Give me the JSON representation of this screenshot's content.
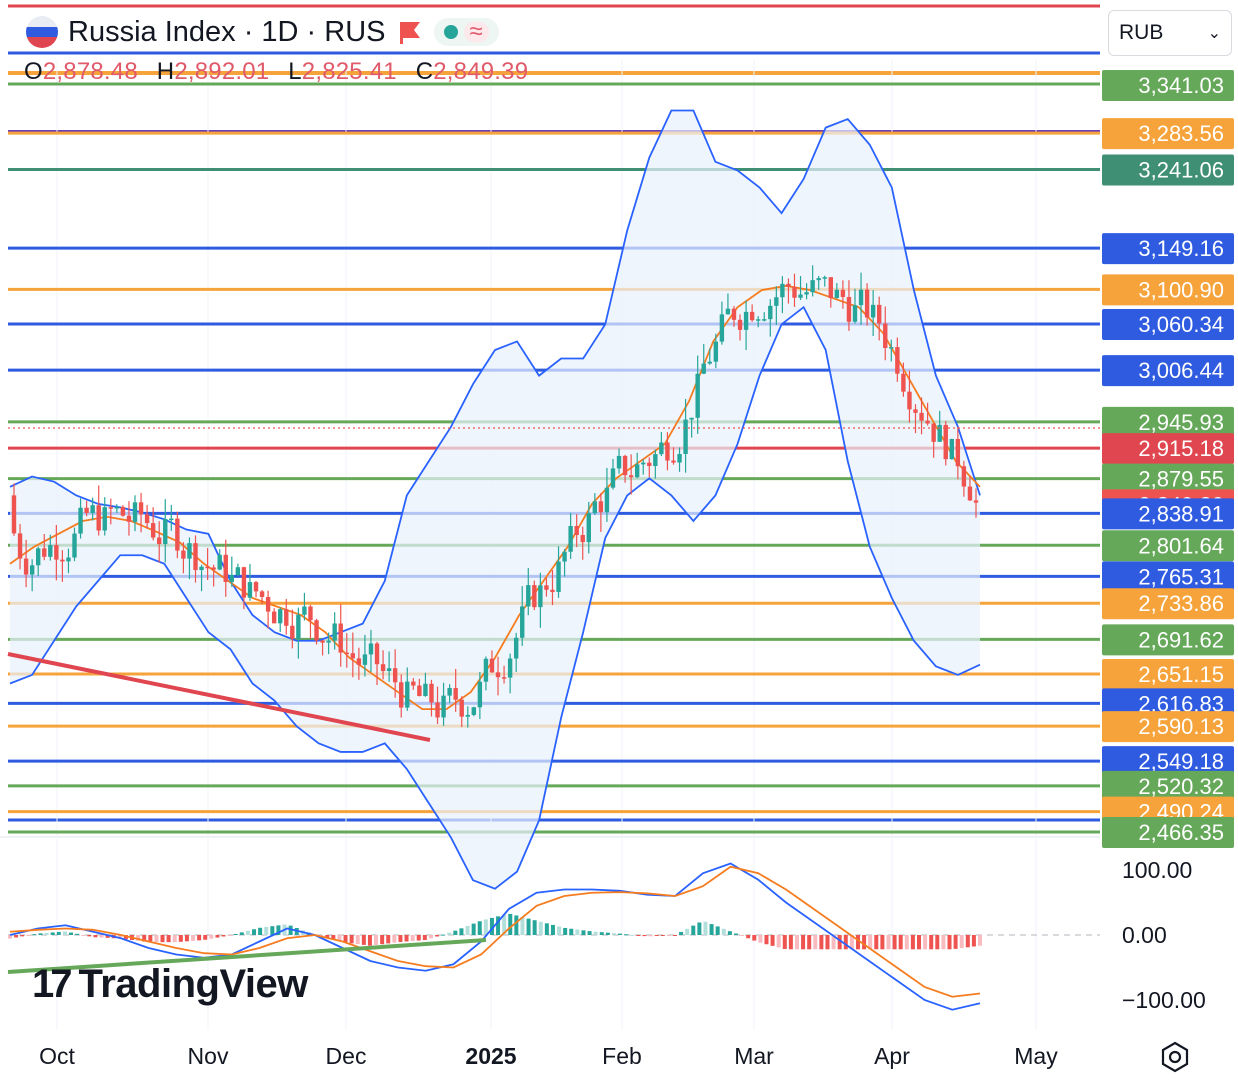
{
  "header": {
    "symbol_title": "Russia Index · 1D · RUS",
    "ohlc": [
      {
        "key": "O",
        "value": "2,878.48"
      },
      {
        "key": "H",
        "value": "2,892.01"
      },
      {
        "key": "L",
        "value": "2,825.41"
      },
      {
        "key": "C",
        "value": "2,849.39"
      }
    ],
    "currency": "RUB",
    "icons": [
      "russia-flag-icon",
      "red-flag-icon",
      "green-dot-icon",
      "wave-icon",
      "chevron-down-icon",
      "settings-icon"
    ]
  },
  "logo_text": "TradingView",
  "colors": {
    "up": "#26a69a",
    "down": "#ef5350",
    "band": "#2962ff",
    "band_fill": "#e8f1fc",
    "ma": "#f57c1f",
    "green_line": "#66a85a",
    "orange_line": "#f5a33a",
    "blue_line": "#2f5be0",
    "red_line": "#e0464f",
    "purple_line": "#6a3fb5",
    "teal_line": "#3f8f74"
  },
  "chart_data": [
    {
      "type": "candlestick",
      "x_axis": {
        "ticks": [
          "Oct",
          "Nov",
          "Dec",
          "2025",
          "Feb",
          "Mar",
          "Apr",
          "May"
        ]
      },
      "price_levels": [
        {
          "value": 3341.03,
          "label": "3,341.03",
          "color": "#66a85a"
        },
        {
          "value": 3283.56,
          "label": "3,283.56",
          "color": "#f5a33a"
        },
        {
          "value": 3241.06,
          "label": "3,241.06",
          "color": "#3f8f74"
        },
        {
          "value": 3149.16,
          "label": "3,149.16",
          "color": "#2f5be0"
        },
        {
          "value": 3100.9,
          "label": "3,100.90",
          "color": "#f5a33a"
        },
        {
          "value": 3060.34,
          "label": "3,060.34",
          "color": "#2f5be0"
        },
        {
          "value": 3006.44,
          "label": "3,006.44",
          "color": "#2f5be0"
        },
        {
          "value": 2945.93,
          "label": "2,945.93",
          "color": "#66a85a"
        },
        {
          "value": 2915.18,
          "label": "2,915.18",
          "color": "#e0464f"
        },
        {
          "value": 2879.55,
          "label": "2,879.55",
          "color": "#66a85a"
        },
        {
          "value": 2849.39,
          "label": "2,849.39",
          "color": "#ef5350",
          "current": true
        },
        {
          "value": 2838.91,
          "label": "2,838.91",
          "color": "#2f5be0"
        },
        {
          "value": 2801.64,
          "label": "2,801.64",
          "color": "#66a85a"
        },
        {
          "value": 2765.31,
          "label": "2,765.31",
          "color": "#2f5be0"
        },
        {
          "value": 2733.86,
          "label": "2,733.86",
          "color": "#f5a33a"
        },
        {
          "value": 2691.62,
          "label": "2,691.62",
          "color": "#66a85a"
        },
        {
          "value": 2651.15,
          "label": "2,651.15",
          "color": "#f5a33a"
        },
        {
          "value": 2616.83,
          "label": "2,616.83",
          "color": "#2f5be0"
        },
        {
          "value": 2590.13,
          "label": "2,590.13",
          "color": "#f5a33a"
        },
        {
          "value": 2549.18,
          "label": "2,549.18",
          "color": "#2f5be0"
        },
        {
          "value": 2520.32,
          "label": "2,520.32",
          "color": "#66a85a"
        },
        {
          "value": 2490.24,
          "label": "2,490.24",
          "color": "#f5a33a"
        },
        {
          "value": 2466.35,
          "label": "2,466.35",
          "color": "#66a85a"
        }
      ],
      "last_price": 2849.39,
      "bollinger": {
        "upper": [
          2870,
          2882,
          2876,
          2860,
          2850,
          2846,
          2840,
          2832,
          2820,
          2815,
          2760,
          2720,
          2700,
          2690,
          2690,
          2700,
          2710,
          2760,
          2860,
          2900,
          2940,
          2990,
          3030,
          3040,
          3000,
          3020,
          3020,
          3060,
          3170,
          3255,
          3310,
          3310,
          3250,
          3240,
          3220,
          3190,
          3230,
          3290,
          3300,
          3270,
          3220,
          3100,
          3000,
          2940,
          2860
        ],
        "lower": [
          2640,
          2650,
          2690,
          2730,
          2760,
          2790,
          2790,
          2780,
          2740,
          2700,
          2680,
          2640,
          2620,
          2590,
          2570,
          2560,
          2560,
          2570,
          2540,
          2500,
          2460,
          2410,
          2400,
          2420,
          2480,
          2600,
          2700,
          2810,
          2860,
          2880,
          2860,
          2830,
          2860,
          2920,
          3000,
          3060,
          3080,
          3030,
          2900,
          2800,
          2740,
          2690,
          2660,
          2650,
          2662
        ]
      },
      "moving_average": [
        2780,
        2800,
        2815,
        2830,
        2835,
        2830,
        2818,
        2805,
        2780,
        2760,
        2740,
        2730,
        2720,
        2700,
        2670,
        2650,
        2630,
        2610,
        2610,
        2630,
        2670,
        2720,
        2760,
        2800,
        2850,
        2880,
        2900,
        2920,
        2970,
        3040,
        3080,
        3100,
        3105,
        3100,
        3090,
        3080,
        3050,
        3000,
        2950,
        2900,
        2870
      ]
    },
    {
      "type": "line",
      "panel": "oscillator",
      "y_ticks": [
        {
          "value": 100,
          "label": "100.00"
        },
        {
          "value": 0,
          "label": "0.00"
        },
        {
          "value": -100,
          "label": "−100.00"
        }
      ],
      "series": [
        {
          "color": "#2962ff",
          "values": [
            0,
            10,
            15,
            5,
            -5,
            -20,
            -30,
            -35,
            -30,
            -10,
            10,
            0,
            -20,
            -40,
            -50,
            -55,
            -45,
            -10,
            40,
            65,
            70,
            70,
            68,
            62,
            60,
            95,
            110,
            85,
            50,
            20,
            -10,
            -40,
            -70,
            -100,
            -115,
            -105
          ]
        },
        {
          "color": "#f57c1f",
          "values": [
            5,
            8,
            10,
            8,
            0,
            -10,
            -20,
            -28,
            -30,
            -20,
            -5,
            0,
            -10,
            -25,
            -40,
            -48,
            -50,
            -30,
            10,
            45,
            60,
            65,
            66,
            64,
            60,
            75,
            105,
            95,
            70,
            40,
            10,
            -20,
            -50,
            -80,
            -95,
            -90
          ]
        }
      ]
    }
  ]
}
